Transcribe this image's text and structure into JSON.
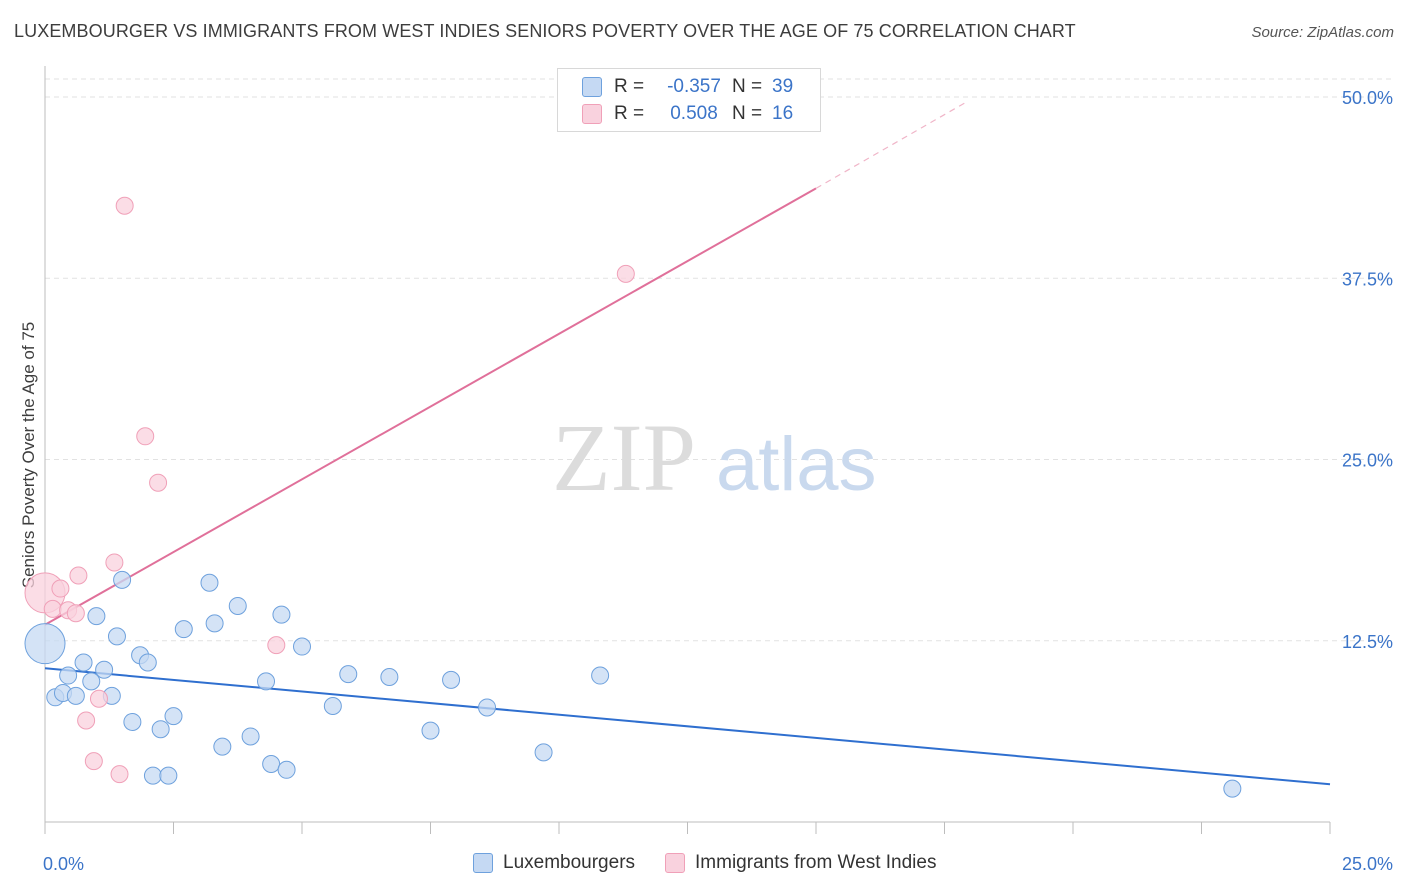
{
  "title": "LUXEMBOURGER VS IMMIGRANTS FROM WEST INDIES SENIORS POVERTY OVER THE AGE OF 75 CORRELATION CHART",
  "source": "Source: ZipAtlas.com",
  "watermark": {
    "part1": "ZIP",
    "part2": "atlas"
  },
  "legend": {
    "r_label": "R =",
    "n_label": "N =",
    "rows": [
      {
        "r": "-0.357",
        "n": "39"
      },
      {
        "r": "0.508",
        "n": "16"
      }
    ]
  },
  "chart_data": {
    "type": "scatter",
    "title": "LUXEMBOURGER VS IMMIGRANTS FROM WEST INDIES SENIORS POVERTY OVER THE AGE OF 75 CORRELATION CHART",
    "xlabel": "",
    "ylabel": "Seniors Poverty Over the Age of 75",
    "xlim": [
      0,
      25
    ],
    "ylim": [
      0,
      50
    ],
    "x_tick_labels": [
      "0.0%",
      "25.0%"
    ],
    "y_ticks": [
      12.5,
      25.0,
      37.5,
      50.0
    ],
    "y_tick_labels": [
      "12.5%",
      "25.0%",
      "37.5%",
      "50.0%"
    ],
    "grid": "horizontal dashed",
    "series": [
      {
        "name": "Luxembourgers",
        "color": "#6ea1dd",
        "fill": "#c5d9f3",
        "points": [
          {
            "x": 0.0,
            "y": 12.3,
            "big": true
          },
          {
            "x": 0.2,
            "y": 8.6
          },
          {
            "x": 0.35,
            "y": 8.9
          },
          {
            "x": 0.45,
            "y": 10.1
          },
          {
            "x": 0.6,
            "y": 8.7
          },
          {
            "x": 0.75,
            "y": 11.0
          },
          {
            "x": 0.9,
            "y": 9.7
          },
          {
            "x": 1.0,
            "y": 14.2
          },
          {
            "x": 1.15,
            "y": 10.5
          },
          {
            "x": 1.3,
            "y": 8.7
          },
          {
            "x": 1.4,
            "y": 12.8
          },
          {
            "x": 1.5,
            "y": 16.7
          },
          {
            "x": 1.7,
            "y": 6.9
          },
          {
            "x": 1.85,
            "y": 11.5
          },
          {
            "x": 2.0,
            "y": 11.0
          },
          {
            "x": 2.1,
            "y": 3.2
          },
          {
            "x": 2.25,
            "y": 6.4
          },
          {
            "x": 2.4,
            "y": 3.2
          },
          {
            "x": 2.5,
            "y": 7.3
          },
          {
            "x": 2.7,
            "y": 13.3
          },
          {
            "x": 3.2,
            "y": 16.5
          },
          {
            "x": 3.3,
            "y": 13.7
          },
          {
            "x": 3.45,
            "y": 5.2
          },
          {
            "x": 3.75,
            "y": 14.9
          },
          {
            "x": 4.0,
            "y": 5.9
          },
          {
            "x": 4.3,
            "y": 9.7
          },
          {
            "x": 4.4,
            "y": 4.0
          },
          {
            "x": 4.6,
            "y": 14.3
          },
          {
            "x": 4.7,
            "y": 3.6
          },
          {
            "x": 5.0,
            "y": 12.1
          },
          {
            "x": 5.6,
            "y": 8.0
          },
          {
            "x": 5.9,
            "y": 10.2
          },
          {
            "x": 6.7,
            "y": 10.0
          },
          {
            "x": 7.5,
            "y": 6.3
          },
          {
            "x": 7.9,
            "y": 9.8
          },
          {
            "x": 8.6,
            "y": 7.9
          },
          {
            "x": 9.7,
            "y": 4.8
          },
          {
            "x": 10.8,
            "y": 10.1
          },
          {
            "x": 23.1,
            "y": 2.3
          }
        ],
        "trend": {
          "x0": 0,
          "y0": 10.6,
          "x1": 25,
          "y1": 2.6
        }
      },
      {
        "name": "Immigrants from West Indies",
        "color": "#f0a0b8",
        "fill": "#f9d2de",
        "points": [
          {
            "x": 0.0,
            "y": 15.8,
            "big": true
          },
          {
            "x": 0.15,
            "y": 14.7
          },
          {
            "x": 0.3,
            "y": 16.1
          },
          {
            "x": 0.45,
            "y": 14.6
          },
          {
            "x": 0.6,
            "y": 14.4
          },
          {
            "x": 0.65,
            "y": 17.0
          },
          {
            "x": 0.8,
            "y": 7.0
          },
          {
            "x": 0.95,
            "y": 4.2
          },
          {
            "x": 1.05,
            "y": 8.5
          },
          {
            "x": 1.35,
            "y": 17.9
          },
          {
            "x": 1.45,
            "y": 3.3
          },
          {
            "x": 1.55,
            "y": 42.5
          },
          {
            "x": 1.95,
            "y": 26.6
          },
          {
            "x": 2.2,
            "y": 23.4
          },
          {
            "x": 4.5,
            "y": 12.2
          },
          {
            "x": 11.3,
            "y": 37.8
          }
        ],
        "trend": {
          "x0": 0,
          "y0": 13.6,
          "x1": 15,
          "y1": 43.7,
          "dash_to_x": 17.9,
          "dash_to_y": 49.6
        }
      }
    ]
  }
}
